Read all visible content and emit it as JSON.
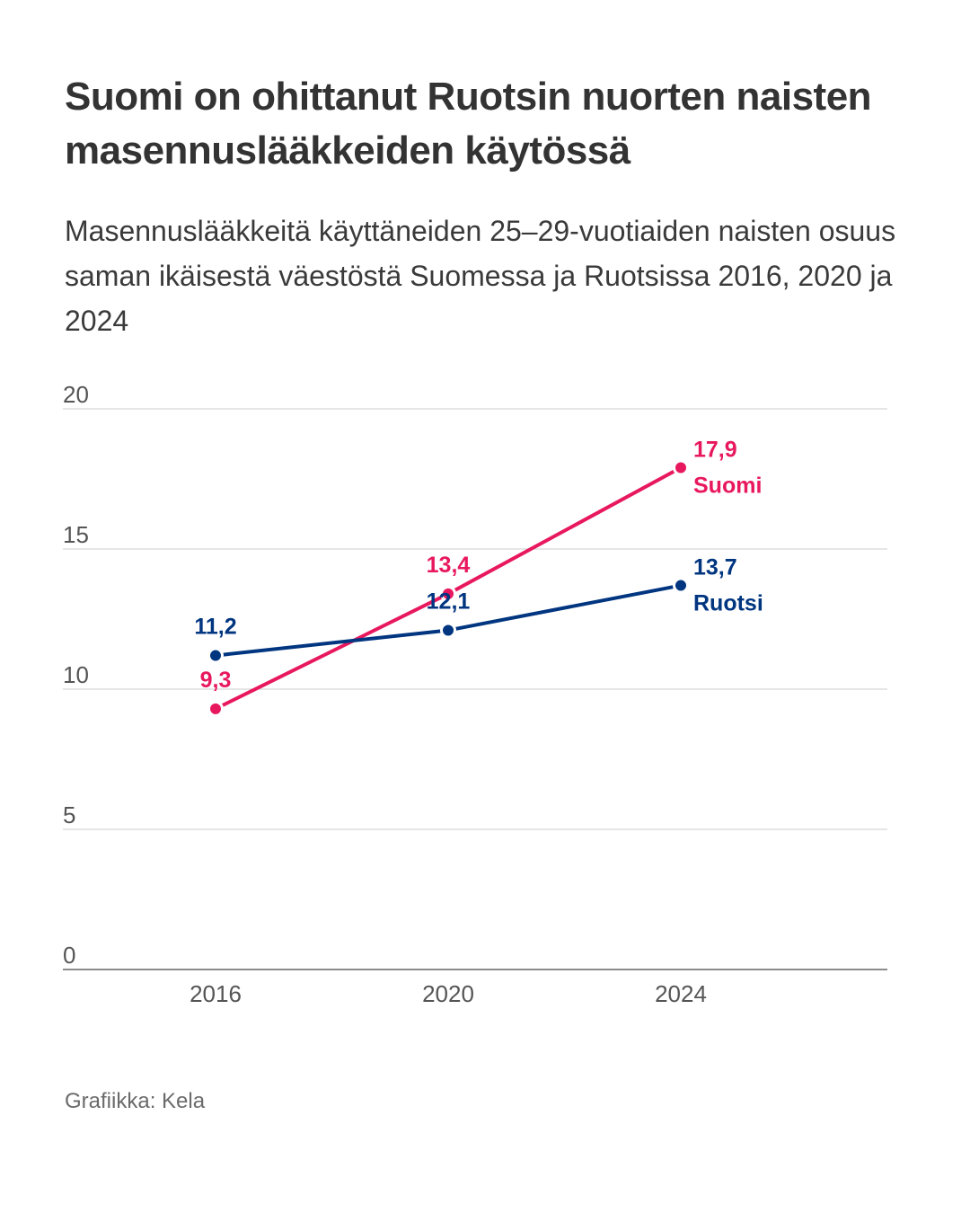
{
  "header": {
    "title": "Suomi on ohittanut Ruotsin nuorten naisten masennuslääkkeiden käytössä",
    "subtitle": "Masennuslääkkeitä käyttäneiden 25–29-vuotiaiden naisten osuus saman ikäisestä väestöstä Suomessa ja Ruotsissa 2016, 2020 ja 2024"
  },
  "footer": {
    "credit": "Grafiikka: Kela"
  },
  "chart_data": {
    "type": "line",
    "title": "Suomi on ohittanut Ruotsin nuorten naisten masennuslääkkeiden käytössä",
    "subtitle": "Masennuslääkkeitä käyttäneiden 25–29-vuotiaiden naisten osuus saman ikäisestä väestöstä Suomessa ja Ruotsissa 2016, 2020 ja 2024",
    "xlabel": "",
    "ylabel": "",
    "categories": [
      "2016",
      "2020",
      "2024"
    ],
    "ylim": [
      0,
      20
    ],
    "yticks": [
      0,
      5,
      10,
      15,
      20
    ],
    "ytick_labels": [
      "0",
      "5",
      "10",
      "15",
      "20"
    ],
    "grid": true,
    "legend": "direct-labels-right",
    "series": [
      {
        "name": "Suomi",
        "color": "#e8185f",
        "values": [
          9.3,
          13.4,
          17.9
        ],
        "labels": [
          "9,3",
          "13,4",
          "17,9"
        ]
      },
      {
        "name": "Ruotsi",
        "color": "#003580",
        "values": [
          11.2,
          12.1,
          13.7
        ],
        "labels": [
          "11,2",
          "12,1",
          "13,7"
        ]
      }
    ]
  }
}
